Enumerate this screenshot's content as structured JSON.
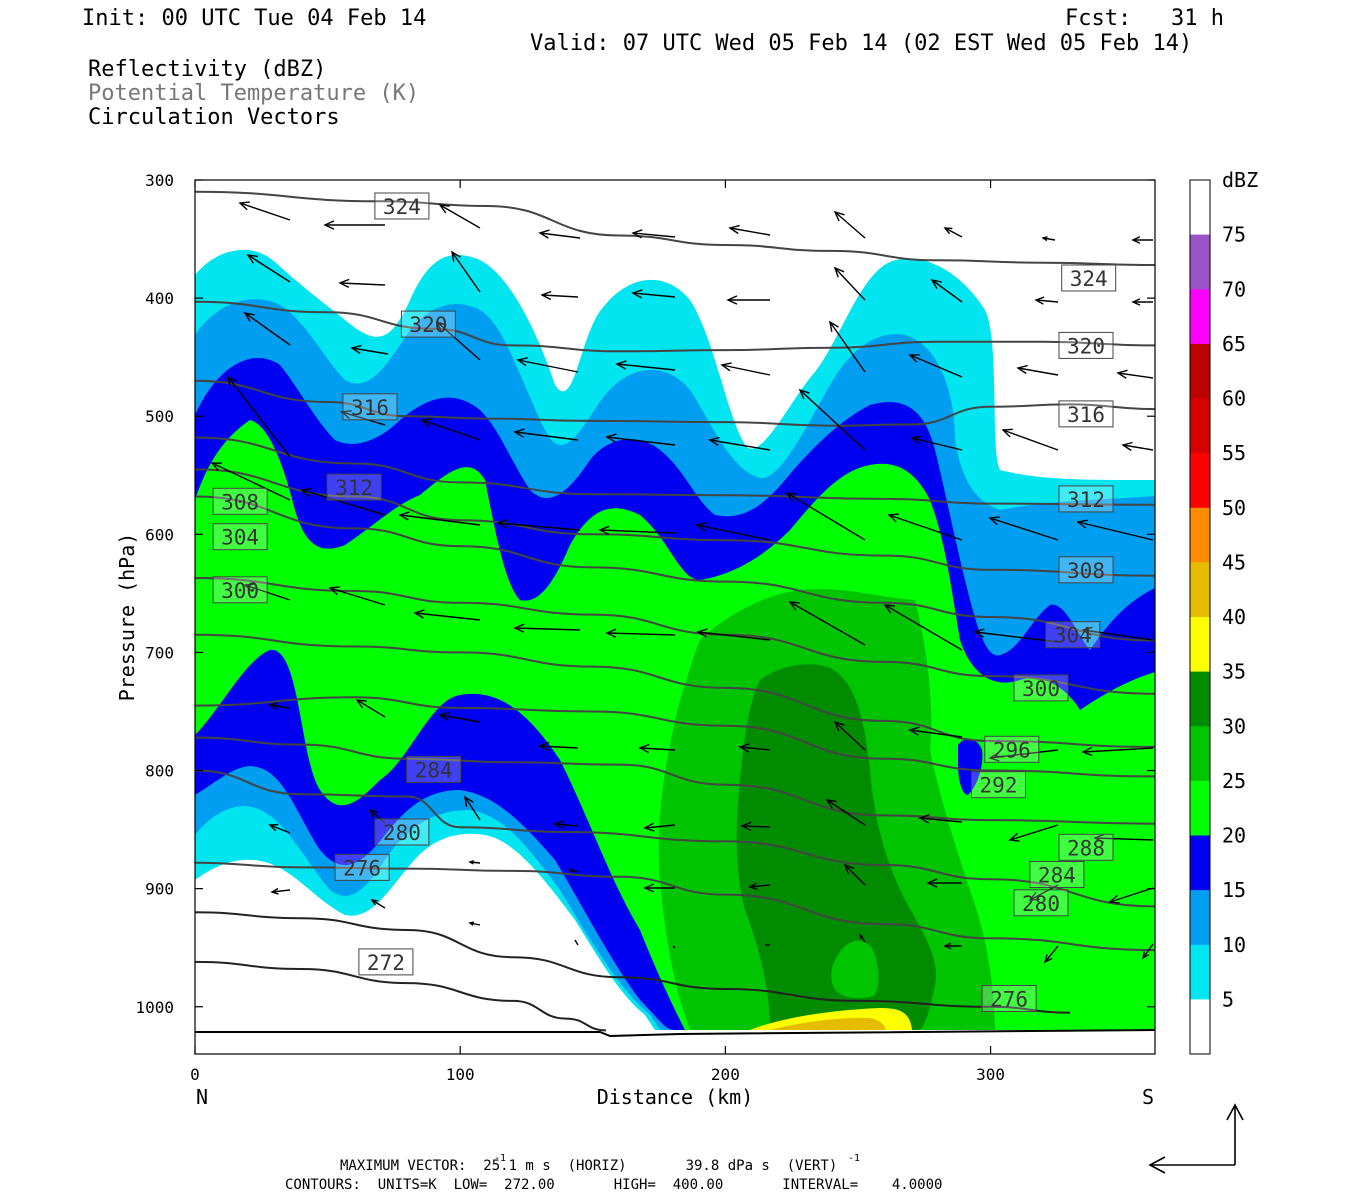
{
  "header": {
    "init": "Init: 00 UTC Tue 04 Feb 14",
    "fcst": "Fcst:   31 h",
    "valid": "Valid: 07 UTC Wed 05 Feb 14 (02 EST Wed 05 Feb 14)",
    "field1": "Reflectivity (dBZ)",
    "field2": "Potential Temperature (K)",
    "field3": "Circulation Vectors"
  },
  "chart_data": {
    "type": "heatmap",
    "title": "Reflectivity (dBZ)",
    "xlabel": "Distance (km)",
    "ylabel": "Pressure (hPa)",
    "xlim": [
      0,
      362
    ],
    "ylim": [
      1040,
      300
    ],
    "x_ticks": [
      0,
      100,
      200,
      300
    ],
    "y_ticks": [
      300,
      400,
      500,
      600,
      700,
      800,
      900,
      1000
    ],
    "x_end_labels": [
      "N",
      "S"
    ],
    "colorbar": {
      "unit": "dBZ",
      "levels": [
        5,
        10,
        15,
        20,
        25,
        30,
        35,
        40,
        45,
        50,
        55,
        60,
        65,
        70,
        75
      ],
      "colors": [
        "#ffffff",
        "#00e5ef",
        "#009ef0",
        "#0000f0",
        "#00ff00",
        "#00c400",
        "#008b00",
        "#ffff00",
        "#e5bc00",
        "#ff8c00",
        "#ff0000",
        "#d60000",
        "#bd0000",
        "#ff00ff",
        "#9955c8",
        "#ffffff"
      ]
    },
    "theta_contours": {
      "units": "K",
      "low": 272.0,
      "high": 400.0,
      "interval": 4.0,
      "lines": [
        {
          "value": 324,
          "points": [
            [
              0,
              310
            ],
            [
              70,
              318
            ],
            [
              110,
              322
            ],
            [
              160,
              347
            ],
            [
              200,
              355
            ],
            [
              240,
              360
            ],
            [
              280,
              368
            ],
            [
              320,
              370
            ],
            [
              362,
              372
            ]
          ]
        },
        {
          "value": 320,
          "points": [
            [
              0,
              403
            ],
            [
              50,
              412
            ],
            [
              90,
              426
            ],
            [
              120,
              440
            ],
            [
              160,
              445
            ],
            [
              200,
              444
            ],
            [
              240,
              442
            ],
            [
              280,
              437
            ],
            [
              320,
              437
            ],
            [
              362,
              440
            ]
          ]
        },
        {
          "value": 316,
          "points": [
            [
              0,
              470
            ],
            [
              50,
              488
            ],
            [
              80,
              500
            ],
            [
              110,
              502
            ],
            [
              150,
              504
            ],
            [
              200,
              505
            ],
            [
              240,
              508
            ],
            [
              270,
              507
            ],
            [
              300,
              492
            ],
            [
              330,
              490
            ],
            [
              362,
              494
            ]
          ]
        },
        {
          "value": 312,
          "points": [
            [
              0,
              518
            ],
            [
              60,
              540
            ],
            [
              100,
              556
            ],
            [
              150,
              566
            ],
            [
              200,
              567
            ],
            [
              260,
              570
            ],
            [
              300,
              574
            ],
            [
              362,
              575
            ]
          ]
        },
        {
          "value": 308,
          "points": [
            [
              0,
              545
            ],
            [
              60,
              568
            ],
            [
              100,
              588
            ],
            [
              150,
              600
            ],
            [
              200,
              605
            ],
            [
              260,
              618
            ],
            [
              300,
              630
            ],
            [
              362,
              635
            ]
          ]
        },
        {
          "value": 304,
          "points": [
            [
              0,
              568
            ],
            [
              60,
              595
            ],
            [
              100,
              610
            ],
            [
              150,
              628
            ],
            [
              200,
              640
            ],
            [
              260,
              658
            ],
            [
              300,
              670
            ],
            [
              362,
              690
            ]
          ]
        },
        {
          "value": 300,
          "points": [
            [
              0,
              637
            ],
            [
              60,
              648
            ],
            [
              100,
              658
            ],
            [
              150,
              668
            ],
            [
              200,
              685
            ],
            [
              260,
              708
            ],
            [
              300,
              720
            ],
            [
              362,
              735
            ]
          ]
        },
        {
          "value": 296,
          "points": [
            [
              0,
              685
            ],
            [
              60,
              695
            ],
            [
              100,
              700
            ],
            [
              150,
              712
            ],
            [
              200,
              730
            ],
            [
              260,
              758
            ],
            [
              300,
              775
            ],
            [
              362,
              780
            ]
          ]
        },
        {
          "value": 292,
          "points": [
            [
              0,
              745
            ],
            [
              60,
              738
            ],
            [
              100,
              747
            ],
            [
              150,
              750
            ],
            [
              200,
              762
            ],
            [
              260,
              790
            ],
            [
              300,
              800
            ],
            [
              362,
              805
            ]
          ]
        },
        {
          "value": 288,
          "points": [
            [
              0,
              772
            ],
            [
              40,
              778
            ],
            [
              80,
              790
            ],
            [
              120,
              793
            ],
            [
              160,
              795
            ],
            [
              200,
              812
            ],
            [
              260,
              838
            ],
            [
              300,
              842
            ],
            [
              362,
              845
            ]
          ]
        },
        {
          "value": 284,
          "points": [
            [
              0,
              800
            ],
            [
              40,
              820
            ],
            [
              80,
              822
            ],
            [
              100,
              848
            ],
            [
              140,
              852
            ],
            [
              200,
              860
            ],
            [
              260,
              880
            ],
            [
              300,
              892
            ],
            [
              362,
              915
            ]
          ]
        },
        {
          "value": 280,
          "points": [
            [
              0,
              878
            ],
            [
              40,
              882
            ],
            [
              80,
              883
            ],
            [
              120,
              885
            ],
            [
              160,
              890
            ],
            [
              200,
              905
            ],
            [
              260,
              930
            ],
            [
              300,
              942
            ],
            [
              362,
              952
            ]
          ]
        },
        {
          "value": 276,
          "points": [
            [
              0,
              920
            ],
            [
              40,
              925
            ],
            [
              80,
              935
            ],
            [
              120,
              958
            ],
            [
              160,
              975
            ],
            [
              200,
              985
            ],
            [
              250,
              995
            ],
            [
              300,
              1000
            ],
            [
              330,
              1005
            ]
          ]
        },
        {
          "value": 272,
          "points": [
            [
              0,
              962
            ],
            [
              40,
              968
            ],
            [
              80,
              980
            ],
            [
              120,
              995
            ],
            [
              140,
              1010
            ],
            [
              155,
              1020
            ]
          ]
        }
      ]
    },
    "contour_labels": [
      {
        "value": "324",
        "x": 78,
        "p": 322
      },
      {
        "value": "324",
        "x": 337,
        "p": 383
      },
      {
        "value": "320",
        "x": 88,
        "p": 422
      },
      {
        "value": "320",
        "x": 336,
        "p": 440
      },
      {
        "value": "316",
        "x": 66,
        "p": 492
      },
      {
        "value": "316",
        "x": 336,
        "p": 498
      },
      {
        "value": "312",
        "x": 60,
        "p": 560
      },
      {
        "value": "312",
        "x": 336,
        "p": 570
      },
      {
        "value": "308",
        "x": 17,
        "p": 572
      },
      {
        "value": "308",
        "x": 336,
        "p": 630
      },
      {
        "value": "304",
        "x": 17,
        "p": 602
      },
      {
        "value": "304",
        "x": 331,
        "p": 685
      },
      {
        "value": "300",
        "x": 17,
        "p": 647
      },
      {
        "value": "300",
        "x": 319,
        "p": 730
      },
      {
        "value": "296",
        "x": 308,
        "p": 782
      },
      {
        "value": "292",
        "x": 303,
        "p": 812
      },
      {
        "value": "288",
        "x": 336,
        "p": 865
      },
      {
        "value": "284",
        "x": 90,
        "p": 799
      },
      {
        "value": "284",
        "x": 325,
        "p": 888
      },
      {
        "value": "280",
        "x": 78,
        "p": 852
      },
      {
        "value": "280",
        "x": 319,
        "p": 912
      },
      {
        "value": "276",
        "x": 63,
        "p": 882
      },
      {
        "value": "276",
        "x": 307,
        "p": 993
      },
      {
        "value": "272",
        "x": 72,
        "p": 962
      }
    ]
  },
  "footer": {
    "max_vector": "MAXIMUM VECTOR:  25.1 m s  (HORIZ)       39.8 dPa s  (VERT)",
    "contours": "CONTOURS:  UNITS=K  LOW=  272.00       HIGH=  400.00       INTERVAL=    4.0000",
    "sup": "-1"
  }
}
